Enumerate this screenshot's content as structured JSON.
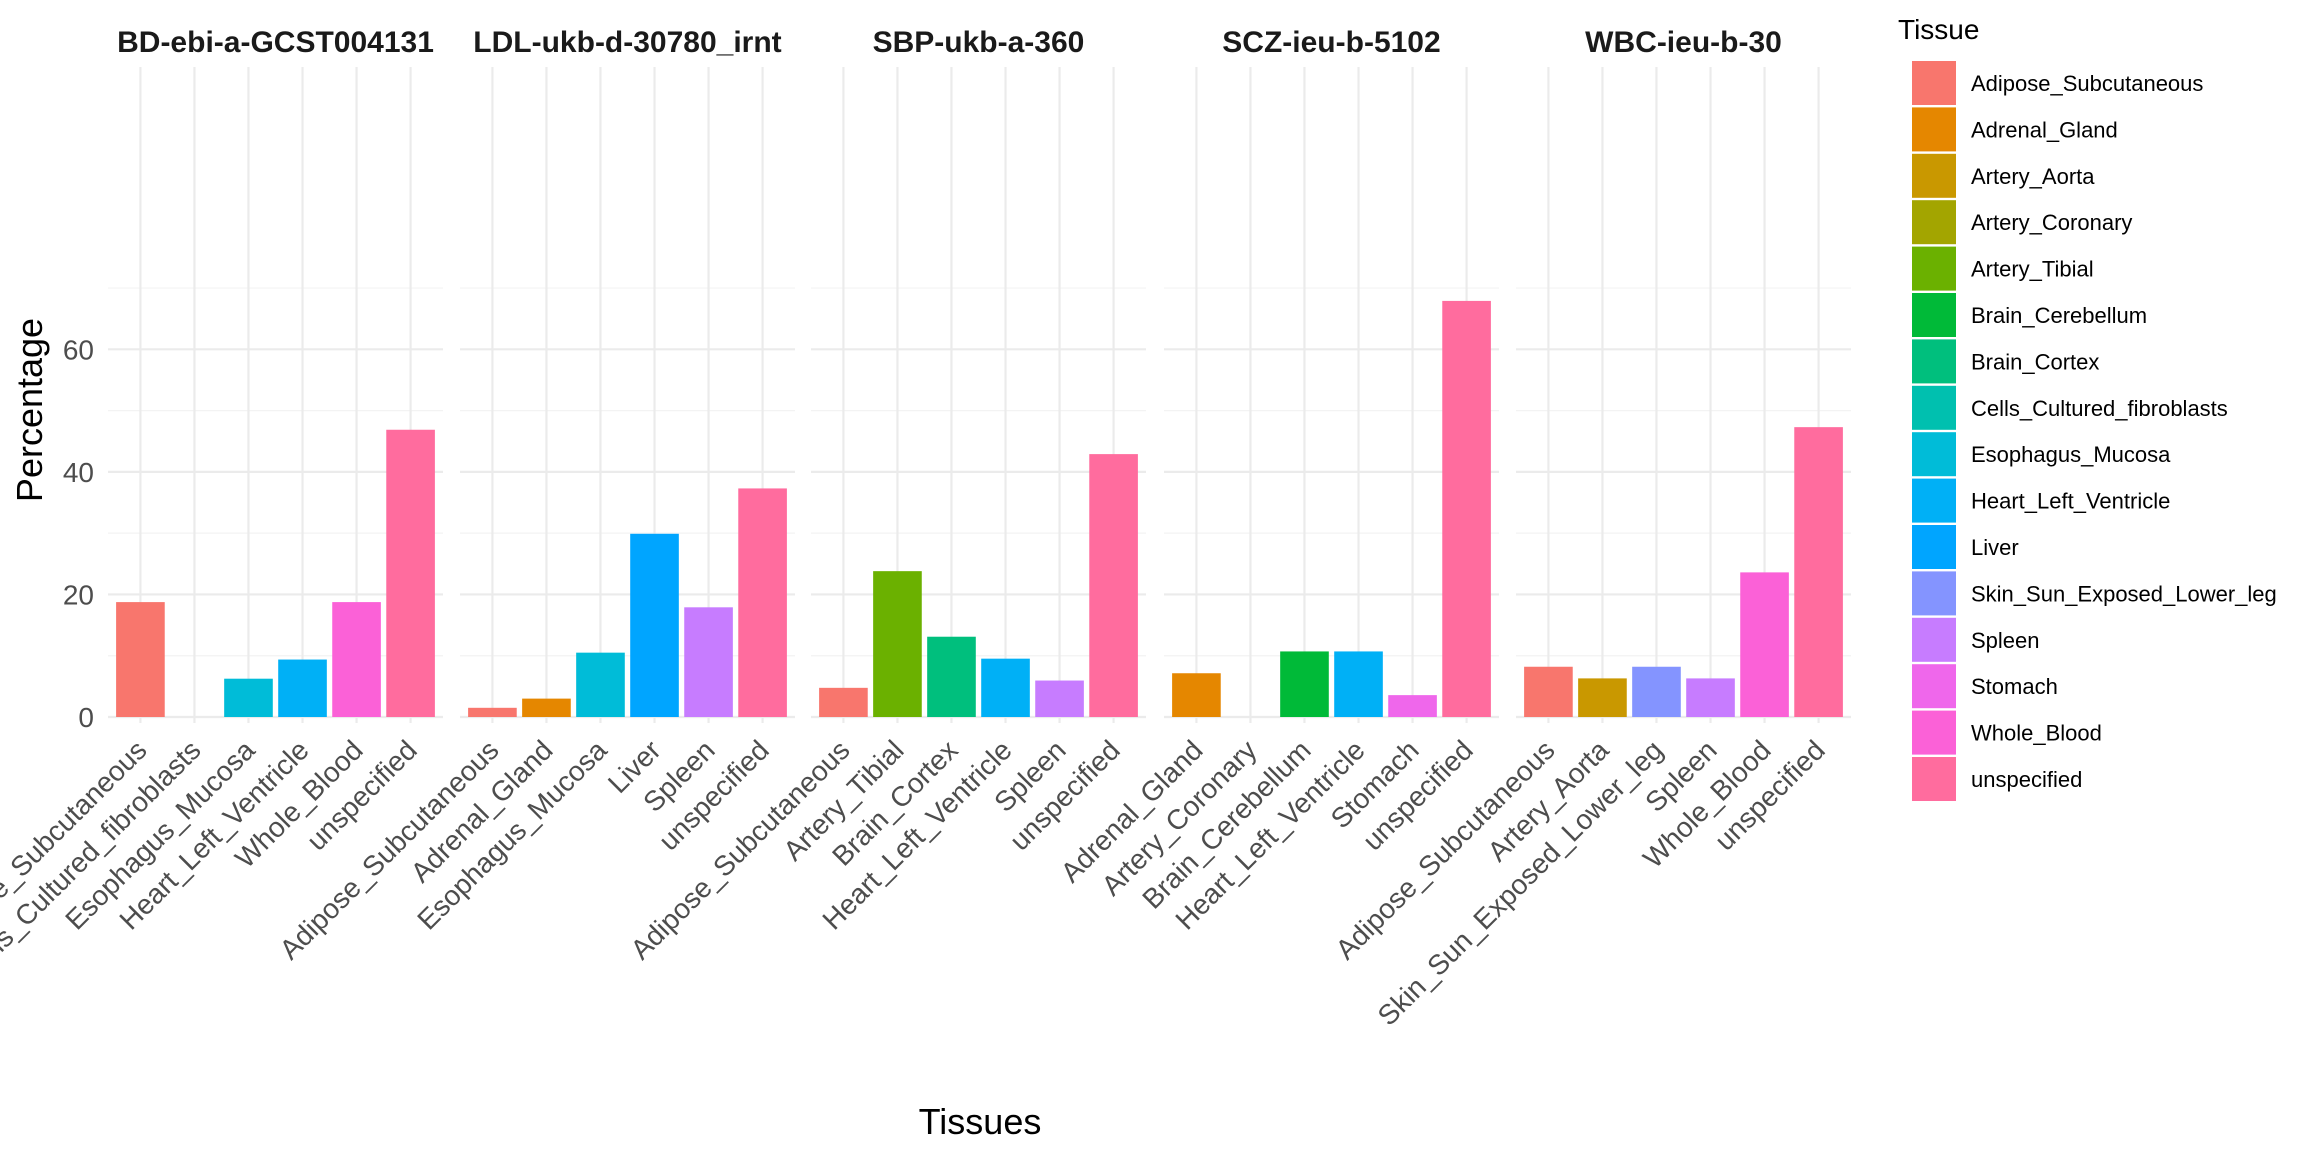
{
  "chart_data": {
    "type": "bar",
    "xlabel": "Tissues",
    "ylabel": "Percentage",
    "ylim": [
      0,
      71
    ],
    "yticks": [
      0,
      20,
      40,
      60
    ],
    "grid": true,
    "legend": {
      "title": "Tissue",
      "placement": "right",
      "entries": [
        {
          "name": "Adipose_Subcutaneous",
          "color": "#F8766D"
        },
        {
          "name": "Adrenal_Gland",
          "color": "#E58700"
        },
        {
          "name": "Artery_Aorta",
          "color": "#C99800"
        },
        {
          "name": "Artery_Coronary",
          "color": "#A3A500"
        },
        {
          "name": "Artery_Tibial",
          "color": "#6BB100"
        },
        {
          "name": "Brain_Cerebellum",
          "color": "#00BA38"
        },
        {
          "name": "Brain_Cortex",
          "color": "#00BF7D"
        },
        {
          "name": "Cells_Cultured_fibroblasts",
          "color": "#00C0AF"
        },
        {
          "name": "Esophagus_Mucosa",
          "color": "#00BCD8"
        },
        {
          "name": "Heart_Left_Ventricle",
          "color": "#00B0F6"
        },
        {
          "name": "Liver",
          "color": "#00A5FF"
        },
        {
          "name": "Skin_Sun_Exposed_Lower_leg",
          "color": "#8494FF"
        },
        {
          "name": "Spleen",
          "color": "#C77CFF"
        },
        {
          "name": "Stomach",
          "color": "#EF67EB"
        },
        {
          "name": "Whole_Blood",
          "color": "#FB61D7"
        },
        {
          "name": "unspecified",
          "color": "#FF6C9E"
        }
      ]
    },
    "facets": [
      {
        "title": "BD-ebi-a-GCST004131",
        "categories": [
          "Adipose_Subcutaneous",
          "Cells_Cultured_fibroblasts",
          "Esophagus_Mucosa",
          "Heart_Left_Ventricle",
          "Whole_Blood",
          "unspecified"
        ],
        "values": [
          18.75,
          0,
          6.25,
          9.375,
          18.75,
          46.875
        ]
      },
      {
        "title": "LDL-ukb-d-30780_irnt",
        "categories": [
          "Adipose_Subcutaneous",
          "Adrenal_Gland",
          "Esophagus_Mucosa",
          "Liver",
          "Spleen",
          "unspecified"
        ],
        "values": [
          1.5,
          3.0,
          10.5,
          29.9,
          17.9,
          37.3
        ]
      },
      {
        "title": "SBP-ukb-a-360",
        "categories": [
          "Adipose_Subcutaneous",
          "Artery_Tibial",
          "Brain_Cortex",
          "Heart_Left_Ventricle",
          "Spleen",
          "unspecified"
        ],
        "values": [
          4.76,
          23.8,
          13.1,
          9.52,
          5.95,
          42.9
        ]
      },
      {
        "title": "SCZ-ieu-b-5102",
        "categories": [
          "Adrenal_Gland",
          "Artery_Coronary",
          "Brain_Cerebellum",
          "Heart_Left_Ventricle",
          "Stomach",
          "unspecified"
        ],
        "values": [
          7.14,
          0,
          10.7,
          10.7,
          3.57,
          67.9
        ]
      },
      {
        "title": "WBC-ieu-b-30",
        "categories": [
          "Adipose_Subcutaneous",
          "Artery_Aorta",
          "Skin_Sun_Exposed_Lower_leg",
          "Spleen",
          "Whole_Blood",
          "unspecified"
        ],
        "values": [
          8.2,
          6.3,
          8.2,
          6.3,
          23.6,
          47.3
        ]
      }
    ]
  }
}
